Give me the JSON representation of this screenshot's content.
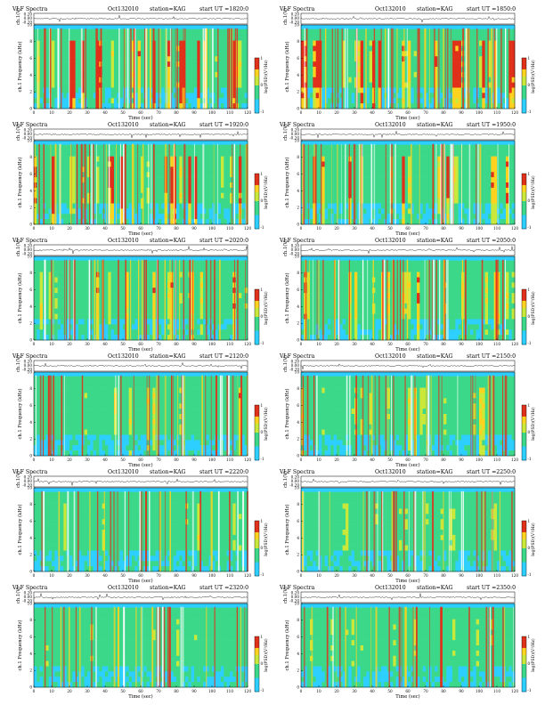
{
  "figure": {
    "colorbar_label": "log(PSD)(V²/Hz)",
    "colorbar_ticks": [
      "1",
      "0",
      "-1"
    ]
  },
  "chart_data": [
    {
      "type": "heatmap",
      "title": "VLF Spectra",
      "date": "Oct132010",
      "station": "station=KAG",
      "start": "start  UT  =1820:0",
      "top_ylabel": "ch.1(V)",
      "top_ticks": [
        "0.20",
        "0.00",
        "-0.20"
      ],
      "ylabel": "ch.1 Frequency (kHz)",
      "xlabel": "Time  (sec)",
      "x_ticks": [
        "0",
        "10",
        "20",
        "30",
        "40",
        "50",
        "60",
        "70",
        "80",
        "90",
        "100",
        "110",
        "120"
      ],
      "y_ticks": [
        "0",
        "2",
        "4",
        "6",
        "8",
        "10"
      ],
      "xlim": [
        0,
        120
      ],
      "ylim": [
        0,
        10
      ],
      "activity": 0.8
    },
    {
      "type": "heatmap",
      "title": "VLF Spectra",
      "date": "Oct132010",
      "station": "station=KAG",
      "start": "start  UT  =1850:0",
      "top_ylabel": "ch.1(V)",
      "top_ticks": [
        "0.20",
        "0.00",
        "-0.20"
      ],
      "ylabel": "ch.1 Frequency (kHz)",
      "xlabel": "Time  (sec)",
      "x_ticks": [
        "0",
        "10",
        "20",
        "30",
        "40",
        "50",
        "60",
        "70",
        "80",
        "90",
        "100",
        "110",
        "120"
      ],
      "y_ticks": [
        "0",
        "2",
        "4",
        "6",
        "8",
        "10"
      ],
      "xlim": [
        0,
        120
      ],
      "ylim": [
        0,
        10
      ],
      "activity": 0.75
    },
    {
      "type": "heatmap",
      "title": "VLF Spectra",
      "date": "Oct132010",
      "station": "station=KAG",
      "start": "start  UT  =1920:0",
      "top_ylabel": "ch.1(V)",
      "top_ticks": [
        "0.20",
        "0.00",
        "-0.20"
      ],
      "ylabel": "ch.1 Frequency (kHz)",
      "xlabel": "Time  (sec)",
      "x_ticks": [
        "0",
        "10",
        "20",
        "30",
        "40",
        "50",
        "60",
        "70",
        "80",
        "90",
        "100",
        "110",
        "120"
      ],
      "y_ticks": [
        "0",
        "2",
        "4",
        "6",
        "8",
        "10"
      ],
      "xlim": [
        0,
        120
      ],
      "ylim": [
        0,
        10
      ],
      "activity": 0.7
    },
    {
      "type": "heatmap",
      "title": "VLF Spectra",
      "date": "Oct132010",
      "station": "station=KAG",
      "start": "start  UT  =1950:0",
      "top_ylabel": "ch.1(V)",
      "top_ticks": [
        "0.20",
        "0.00",
        "-0.20"
      ],
      "ylabel": "ch.1 Frequency (kHz)",
      "xlabel": "Time  (sec)",
      "x_ticks": [
        "0",
        "10",
        "20",
        "30",
        "40",
        "50",
        "60",
        "70",
        "80",
        "90",
        "100",
        "110",
        "120"
      ],
      "y_ticks": [
        "0",
        "2",
        "4",
        "6",
        "8",
        "10"
      ],
      "xlim": [
        0,
        120
      ],
      "ylim": [
        0,
        10
      ],
      "activity": 0.65
    },
    {
      "type": "heatmap",
      "title": "VLF Spectra",
      "date": "Oct132010",
      "station": "station=KAG",
      "start": "start  UT  =2020:0",
      "top_ylabel": "ch.1(V)",
      "top_ticks": [
        "0.20",
        "0.00",
        "-0.20"
      ],
      "ylabel": "ch.1 Frequency (kHz)",
      "xlabel": "Time  (sec)",
      "x_ticks": [
        "0",
        "10",
        "20",
        "30",
        "40",
        "50",
        "60",
        "70",
        "80",
        "90",
        "100",
        "110",
        "120"
      ],
      "y_ticks": [
        "0",
        "2",
        "4",
        "6",
        "8",
        "10"
      ],
      "xlim": [
        0,
        120
      ],
      "ylim": [
        0,
        10
      ],
      "activity": 0.55
    },
    {
      "type": "heatmap",
      "title": "VLF Spectra",
      "date": "Oct132010",
      "station": "station=KAG",
      "start": "start  UT  =2050:0",
      "top_ylabel": "ch.1(V)",
      "top_ticks": [
        "0.20",
        "0.00",
        "-0.20"
      ],
      "ylabel": "ch.1 Frequency (kHz)",
      "xlabel": "Time  (sec)",
      "x_ticks": [
        "0",
        "10",
        "20",
        "30",
        "40",
        "50",
        "60",
        "70",
        "80",
        "90",
        "100",
        "110",
        "120"
      ],
      "y_ticks": [
        "0",
        "2",
        "4",
        "6",
        "8",
        "10"
      ],
      "xlim": [
        0,
        120
      ],
      "ylim": [
        0,
        10
      ],
      "activity": 0.55
    },
    {
      "type": "heatmap",
      "title": "VLF Spectra",
      "date": "Oct132010",
      "station": "station=KAG",
      "start": "start  UT  =2120:0",
      "top_ylabel": "ch.1(V)",
      "top_ticks": [
        "0.20",
        "0.00",
        "-0.20"
      ],
      "ylabel": "ch.1 Frequency (kHz)",
      "xlabel": "Time  (sec)",
      "x_ticks": [
        "0",
        "10",
        "20",
        "30",
        "40",
        "50",
        "60",
        "70",
        "80",
        "90",
        "100",
        "110",
        "120"
      ],
      "y_ticks": [
        "0",
        "2",
        "4",
        "6",
        "8",
        "10"
      ],
      "xlim": [
        0,
        120
      ],
      "ylim": [
        0,
        10
      ],
      "activity": 0.45
    },
    {
      "type": "heatmap",
      "title": "VLF Spectra",
      "date": "Oct132010",
      "station": "station=KAG",
      "start": "start  UT  =2150:0",
      "top_ylabel": "ch.1(V)",
      "top_ticks": [
        "0.20",
        "0.00",
        "-0.20"
      ],
      "ylabel": "ch.1 Frequency (kHz)",
      "xlabel": "Time  (sec)",
      "x_ticks": [
        "0",
        "10",
        "20",
        "30",
        "40",
        "50",
        "60",
        "70",
        "80",
        "90",
        "100",
        "110",
        "120"
      ],
      "y_ticks": [
        "0",
        "2",
        "4",
        "6",
        "8",
        "10"
      ],
      "xlim": [
        0,
        120
      ],
      "ylim": [
        0,
        10
      ],
      "activity": 0.4
    },
    {
      "type": "heatmap",
      "title": "VLF Spectra",
      "date": "Oct132010",
      "station": "station=KAG",
      "start": "start  UT  =2220:0",
      "top_ylabel": "ch.1(V)",
      "top_ticks": [
        "0.20",
        "0.00",
        "-0.20"
      ],
      "ylabel": "ch.1 Frequency (kHz)",
      "xlabel": "Time  (sec)",
      "x_ticks": [
        "0",
        "10",
        "20",
        "30",
        "40",
        "50",
        "60",
        "70",
        "80",
        "90",
        "100",
        "110",
        "120"
      ],
      "y_ticks": [
        "0",
        "2",
        "4",
        "6",
        "8",
        "10"
      ],
      "xlim": [
        0,
        120
      ],
      "ylim": [
        0,
        10
      ],
      "activity": 0.3
    },
    {
      "type": "heatmap",
      "title": "VLF Spectra",
      "date": "Oct132010",
      "station": "station=KAG",
      "start": "start  UT  =2250:0",
      "top_ylabel": "ch.1(V)",
      "top_ticks": [
        "0.20",
        "0.00",
        "-0.20"
      ],
      "ylabel": "ch.1 Frequency (kHz)",
      "xlabel": "Time  (sec)",
      "x_ticks": [
        "0",
        "10",
        "20",
        "30",
        "40",
        "50",
        "60",
        "70",
        "80",
        "90",
        "100",
        "110",
        "120"
      ],
      "y_ticks": [
        "0",
        "2",
        "4",
        "6",
        "8",
        "10"
      ],
      "xlim": [
        0,
        120
      ],
      "ylim": [
        0,
        10
      ],
      "activity": 0.3
    },
    {
      "type": "heatmap",
      "title": "VLF Spectra",
      "date": "Oct132010",
      "station": "station=KAG",
      "start": "start  UT  =2320:0",
      "top_ylabel": "ch.1(V)",
      "top_ticks": [
        "0.20",
        "0.00",
        "-0.20"
      ],
      "ylabel": "ch.1 Frequency (kHz)",
      "xlabel": "Time  (sec)",
      "x_ticks": [
        "0",
        "10",
        "20",
        "30",
        "40",
        "50",
        "60",
        "70",
        "80",
        "90",
        "100",
        "110",
        "120"
      ],
      "y_ticks": [
        "0",
        "2",
        "4",
        "6",
        "8",
        "10"
      ],
      "xlim": [
        0,
        120
      ],
      "ylim": [
        0,
        10
      ],
      "activity": 0.2
    },
    {
      "type": "heatmap",
      "title": "VLF Spectra",
      "date": "Oct132010",
      "station": "station=KAG",
      "start": "start  UT  =2350:0",
      "top_ylabel": "ch.1(V)",
      "top_ticks": [
        "0.20",
        "0.00",
        "-0.20"
      ],
      "ylabel": "ch.1 Frequency (kHz)",
      "xlabel": "Time  (sec)",
      "x_ticks": [
        "0",
        "10",
        "20",
        "30",
        "40",
        "50",
        "60",
        "70",
        "80",
        "90",
        "100",
        "110",
        "120"
      ],
      "y_ticks": [
        "0",
        "2",
        "4",
        "6",
        "8",
        "10"
      ],
      "xlim": [
        0,
        120
      ],
      "ylim": [
        0,
        10
      ],
      "activity": 0.2
    }
  ]
}
